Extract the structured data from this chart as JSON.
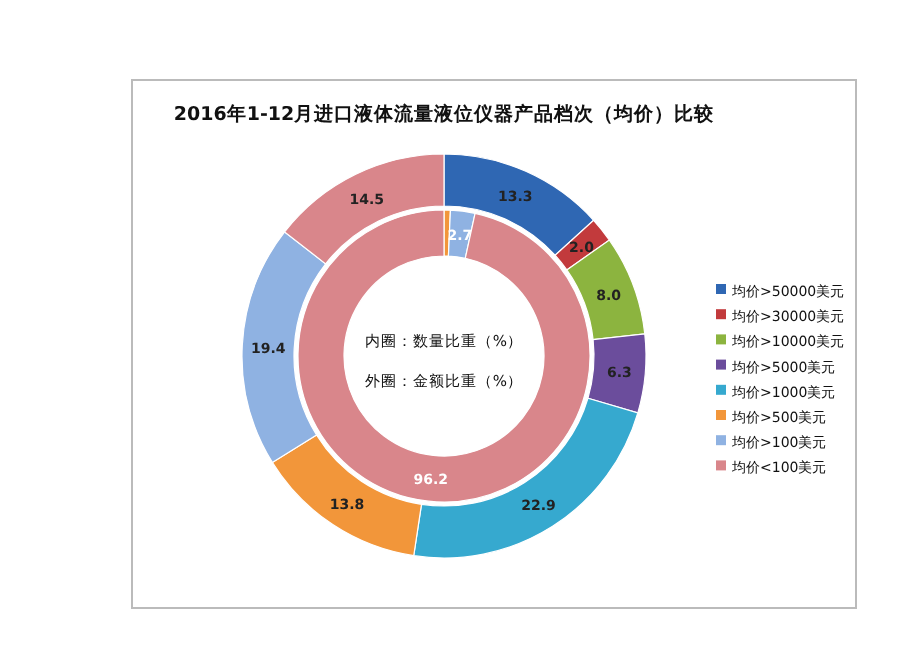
{
  "chart_data": {
    "type": "donut",
    "title": "2016年1-12月进口液体流量液位仪器产品档次（均价）比较",
    "categories": [
      "均价>50000美元",
      "均价>30000美元",
      "均价>10000美元",
      "均价>5000美元",
      "均价>1000美元",
      "均价>500美元",
      "均价>100美元",
      "均价<100美元"
    ],
    "colors": [
      "#2f67b3",
      "#c23a3c",
      "#8cb43f",
      "#6b4d9c",
      "#36a9cf",
      "#f2963a",
      "#8fb2e2",
      "#d9868b"
    ],
    "series": [
      {
        "values": [
          null,
          null,
          null,
          null,
          null,
          0.7,
          2.7,
          96.2
        ],
        "value_labels": [
          null,
          null,
          null,
          null,
          null,
          null,
          "2.7",
          "96.2"
        ]
      },
      {
        "values": [
          13.3,
          2.0,
          8.0,
          6.3,
          22.9,
          13.8,
          19.4,
          14.5
        ],
        "value_labels": [
          "13.3",
          "2.0",
          "8.0",
          "6.3",
          "22.9",
          "13.8",
          "19.4",
          "14.5"
        ]
      }
    ],
    "legend": "right",
    "annotations": [
      "内圈：数量比重（%）",
      "外圈：金额比重（%）"
    ]
  }
}
